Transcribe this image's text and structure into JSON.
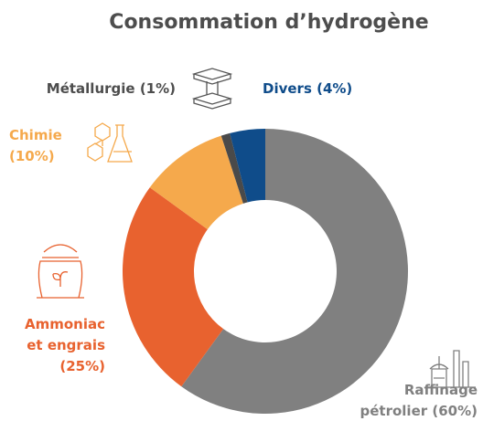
{
  "chart_data": {
    "type": "pie",
    "title": "Consommation d’hydrogène",
    "categories": [
      "Raffinage pétrolier",
      "Ammoniac et engrais",
      "Chimie",
      "Métallurgie",
      "Divers"
    ],
    "values": [
      60,
      25,
      10,
      1,
      4
    ],
    "value_labels": [
      "(60%)",
      "(25%)",
      "(10%)",
      "(1%)",
      "(4%)"
    ],
    "colors": [
      "#808080",
      "#e8622f",
      "#f5a94c",
      "#4a4a4a",
      "#0f4c8a"
    ]
  }
}
